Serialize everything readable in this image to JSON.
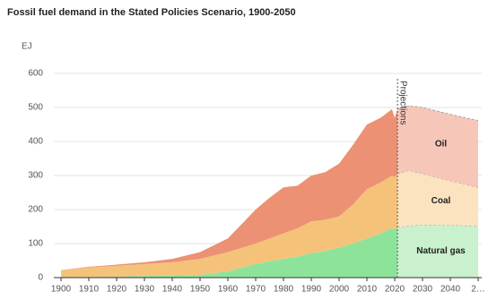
{
  "chart_data": {
    "type": "stacked-area",
    "title": "Fossil fuel demand in the Stated Policies Scenario, 1900-2050",
    "y_label": "EJ",
    "x": [
      1900,
      1910,
      1920,
      1930,
      1940,
      1950,
      1960,
      1970,
      1975,
      1980,
      1985,
      1990,
      1995,
      2000,
      2005,
      2010,
      2015,
      2019,
      2020,
      2021,
      2025,
      2030,
      2035,
      2040,
      2045,
      2050
    ],
    "series": [
      {
        "name": "Natural gas",
        "color": "#8ee39a",
        "projection_color": "#c9f1cd",
        "values": [
          1,
          2,
          3,
          5,
          6,
          8,
          18,
          40,
          48,
          55,
          62,
          72,
          78,
          88,
          100,
          115,
          130,
          145,
          142,
          148,
          152,
          155,
          155,
          154,
          153,
          152
        ]
      },
      {
        "name": "Coal",
        "color": "#f5c27a",
        "projection_color": "#fbe3bf",
        "values": [
          21,
          28,
          32,
          35,
          39,
          47,
          57,
          60,
          67,
          75,
          83,
          93,
          92,
          92,
          115,
          145,
          150,
          155,
          153,
          157,
          163,
          150,
          140,
          131,
          122,
          113
        ]
      },
      {
        "name": "Oil",
        "color": "#ec9173",
        "projection_color": "#f6c7b8",
        "values": [
          0,
          2,
          3,
          5,
          10,
          20,
          40,
          100,
          120,
          135,
          125,
          135,
          140,
          155,
          175,
          190,
          190,
          195,
          175,
          190,
          190,
          195,
          195,
          195,
          195,
          197
        ]
      }
    ],
    "annotation": {
      "text": "Projections",
      "x": 2021
    },
    "xlim": [
      1900,
      2050
    ],
    "xticks": [
      1900,
      1910,
      1920,
      1930,
      1940,
      1950,
      1960,
      1970,
      1980,
      1990,
      2000,
      2010,
      2020,
      2030,
      2040,
      {
        "value": 2050,
        "label": "2…"
      }
    ],
    "ylim": [
      0,
      600
    ],
    "yticks": [
      0,
      100,
      200,
      300,
      400,
      500,
      600
    ],
    "grid": true
  }
}
